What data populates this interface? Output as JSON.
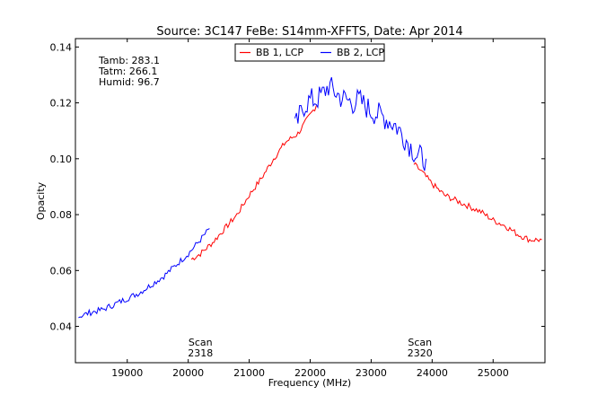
{
  "chart_data": {
    "type": "line",
    "title": "Source: 3C147 FeBe: S14mm-XFFTS, Date: Apr 2014",
    "xlabel": "Frequency (MHz)",
    "ylabel": "Opacity",
    "xlim": [
      18150,
      25850
    ],
    "ylim": [
      0.027,
      0.143
    ],
    "xticks": [
      19000,
      20000,
      21000,
      22000,
      23000,
      24000,
      25000
    ],
    "xtick_labels": [
      "19000",
      "20000",
      "21000",
      "22000",
      "23000",
      "24000",
      "25000"
    ],
    "yticks": [
      0.04,
      0.06,
      0.08,
      0.1,
      0.12,
      0.14
    ],
    "ytick_labels": [
      "0.04",
      "0.06",
      "0.08",
      "0.10",
      "0.12",
      "0.14"
    ],
    "grid": false,
    "legend_position": "top-center",
    "legend": [
      {
        "label": "BB 1, LCP",
        "color": "#ff0000"
      },
      {
        "label": "BB 2, LCP",
        "color": "#0000ff"
      }
    ],
    "series": [
      {
        "name": "BB 1, LCP",
        "color": "#ff0000",
        "segment": "scan 2318",
        "x": [
          20050,
          20200,
          20400,
          20600,
          20800,
          21000,
          21200,
          21400,
          21600,
          21800,
          21950,
          22100
        ],
        "y": [
          0.064,
          0.066,
          0.07,
          0.075,
          0.08,
          0.087,
          0.093,
          0.1,
          0.106,
          0.109,
          0.114,
          0.119
        ]
      },
      {
        "name": "BB 2, LCP",
        "color": "#0000ff",
        "segment": "scan 2318",
        "x": [
          18200,
          18400,
          18600,
          18800,
          19000,
          19200,
          19400,
          19600,
          19800,
          20000,
          20200,
          20350
        ],
        "y": [
          0.0435,
          0.045,
          0.046,
          0.048,
          0.05,
          0.052,
          0.055,
          0.058,
          0.062,
          0.066,
          0.071,
          0.075
        ]
      },
      {
        "name": "BB 1, LCP",
        "color": "#ff0000",
        "segment": "scan 2320",
        "x": [
          23700,
          23800,
          24000,
          24200,
          24400,
          24600,
          24800,
          25000,
          25200,
          25400,
          25600,
          25800
        ],
        "y": [
          0.098,
          0.096,
          0.091,
          0.087,
          0.085,
          0.083,
          0.081,
          0.078,
          0.076,
          0.073,
          0.071,
          0.071
        ]
      },
      {
        "name": "BB 2, LCP",
        "color": "#0000ff",
        "segment": "scan 2320",
        "x": [
          21750,
          21900,
          22000,
          22100,
          22200,
          22300,
          22400,
          22500,
          22600,
          22700,
          22800,
          22900,
          23000,
          23200,
          23400,
          23600,
          23750,
          23900
        ],
        "y": [
          0.111,
          0.119,
          0.121,
          0.121,
          0.123,
          0.126,
          0.124,
          0.122,
          0.121,
          0.12,
          0.121,
          0.119,
          0.117,
          0.115,
          0.112,
          0.106,
          0.101,
          0.1
        ]
      }
    ],
    "annotations": [
      {
        "text": "Tamb: 283.1"
      },
      {
        "text": "Tatm: 266.1"
      },
      {
        "text": "Humid: 96.7"
      },
      {
        "text": "Scan",
        "text2": "2318",
        "x": 20200
      },
      {
        "text": "Scan",
        "text2": "2320",
        "x": 23800
      }
    ]
  }
}
